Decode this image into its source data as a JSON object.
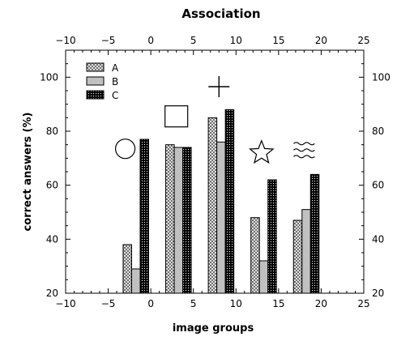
{
  "chart_data": {
    "type": "bar",
    "title": "Association",
    "xlabel": "image groups",
    "ylabel": "correct answers (%)",
    "xlim": [
      -10,
      25
    ],
    "ylim": [
      20,
      110
    ],
    "xticks": [
      -10,
      -5,
      0,
      5,
      10,
      15,
      20,
      25
    ],
    "yticks": [
      20,
      40,
      60,
      80,
      100
    ],
    "grid": false,
    "legend_position": "top-left",
    "bar_width": 1,
    "series": [
      {
        "name": "A",
        "fill": "crosshatch",
        "x": [
          -2.75,
          2.25,
          7.25,
          12.25,
          17.25
        ],
        "values": [
          38,
          75,
          85,
          48,
          47
        ]
      },
      {
        "name": "B",
        "fill": "#c0c0c0",
        "x": [
          -1.75,
          3.25,
          8.25,
          13.25,
          18.25
        ],
        "values": [
          29,
          74,
          76,
          32,
          51
        ]
      },
      {
        "name": "C",
        "fill": "dotted-black",
        "x": [
          -0.75,
          4.25,
          9.25,
          14.25,
          19.25
        ],
        "values": [
          77,
          74,
          88,
          62,
          64
        ]
      }
    ],
    "group_icons": [
      {
        "icon": "circle-icon",
        "x": -3,
        "y": 73.5
      },
      {
        "icon": "square-icon",
        "x": 3,
        "y": 85.5
      },
      {
        "icon": "cross-icon",
        "x": 8,
        "y": 96.5
      },
      {
        "icon": "star-icon",
        "x": 13,
        "y": 72
      },
      {
        "icon": "waves-icon",
        "x": 18,
        "y": 73
      }
    ]
  }
}
